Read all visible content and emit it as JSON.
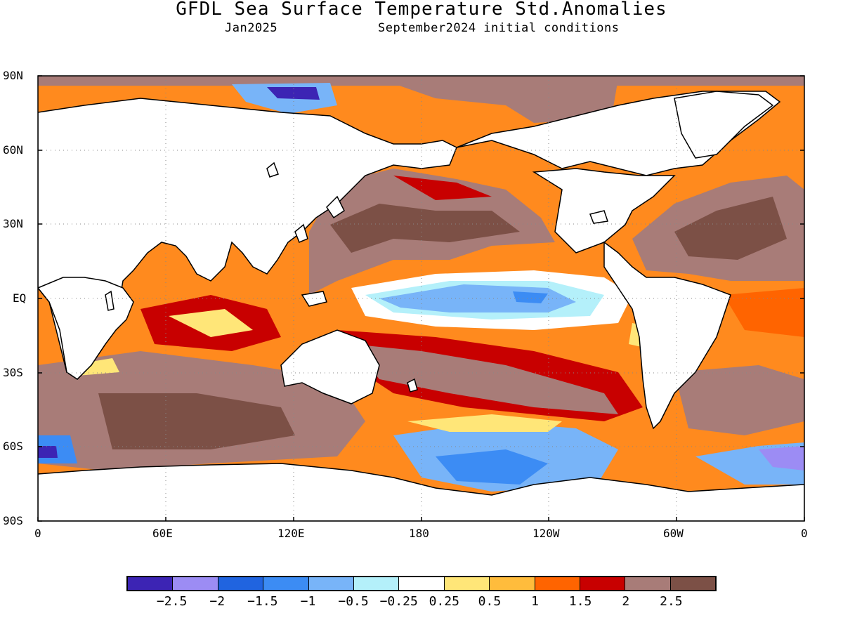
{
  "title": "GFDL Sea Surface Temperature Std.Anomalies",
  "valid_month": "Jan2025",
  "initial_conditions": "September2024 initial conditions",
  "lat_labels": [
    "90N",
    "60N",
    "30N",
    "EQ",
    "30S",
    "60S",
    "90S"
  ],
  "lon_labels": [
    "0",
    "60E",
    "120E",
    "180",
    "120W",
    "60W",
    "0"
  ],
  "colorbar": {
    "colors": [
      "#3c24b4",
      "#9c8cf4",
      "#2064e0",
      "#3c8cf4",
      "#78b4f8",
      "#b4f0fa",
      "#ffffff",
      "#ffe678",
      "#ffbc3c",
      "#ff6400",
      "#c80000",
      "#a87c78",
      "#7c5046"
    ],
    "labels": [
      "−2.5",
      "−2",
      "−1.5",
      "−1",
      "−0.5",
      "−0.25",
      "0.25",
      "0.5",
      "1",
      "1.5",
      "2",
      "2.5"
    ]
  },
  "ocean_default_color": "#ffbc3c",
  "land_color": "#ffffff"
}
